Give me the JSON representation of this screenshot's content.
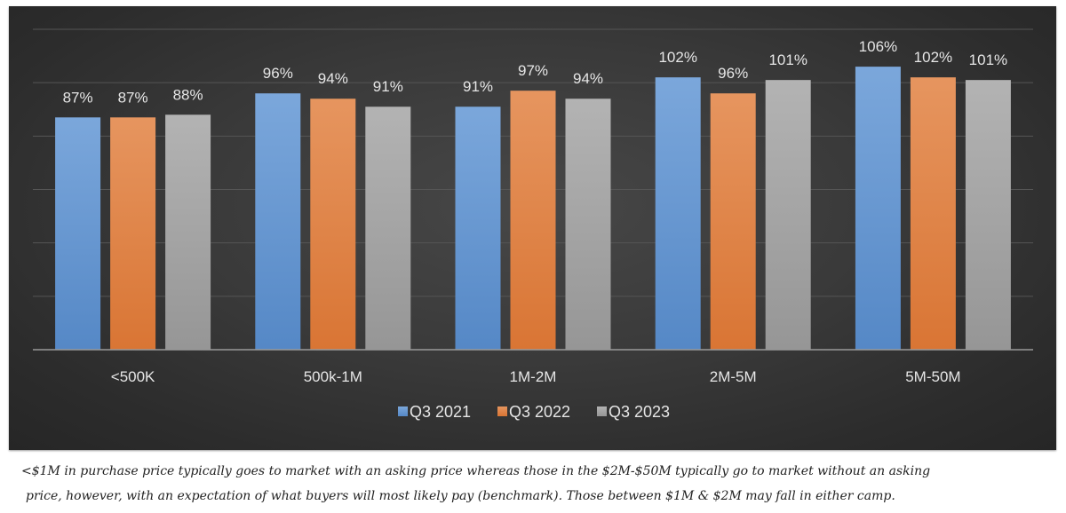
{
  "chart_data": {
    "type": "bar",
    "title": "",
    "xlabel": "",
    "ylabel": "",
    "ylim": [
      0,
      120
    ],
    "grid_step": 20,
    "grid": true,
    "y_tick_labels_visible": false,
    "legend_position": "bottom",
    "categories": [
      "<500K",
      "500k-1M",
      "1M-2M",
      "2M-5M",
      "5M-50M"
    ],
    "series": [
      {
        "name": "Q3 2021",
        "color": "#6a9bd6",
        "values": [
          87,
          96,
          91,
          102,
          106
        ],
        "labels": [
          "87%",
          "96%",
          "91%",
          "102%",
          "106%"
        ]
      },
      {
        "name": "Q3 2022",
        "color": "#e08a4f",
        "values": [
          87,
          94,
          97,
          96,
          102
        ],
        "labels": [
          "87%",
          "94%",
          "97%",
          "96%",
          "102%"
        ]
      },
      {
        "name": "Q3 2023",
        "color": "#a8a8a8",
        "values": [
          88,
          91,
          94,
          101,
          101
        ],
        "labels": [
          "88%",
          "91%",
          "94%",
          "101%",
          "101%"
        ]
      }
    ],
    "value_suffix": "%"
  },
  "caption": {
    "line1": "<$1M in purchase price typically goes to market with an asking price whereas those in the $2M-$50M typically go to market without an asking",
    "line2": "price, however, with an expectation of what buyers will most likely pay (benchmark). Those between $1M & $2M may fall in either camp."
  }
}
